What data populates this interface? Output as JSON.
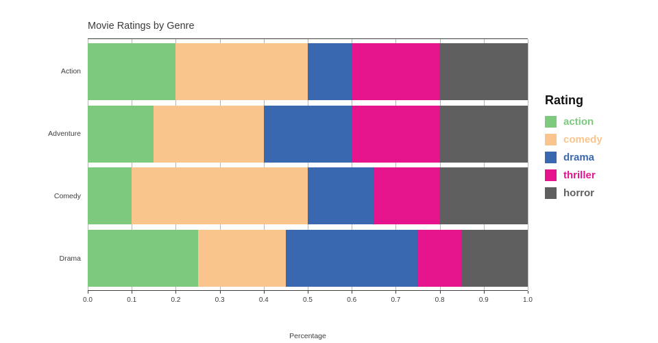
{
  "chart_data": {
    "type": "bar",
    "orientation": "horizontal",
    "stacked": true,
    "title": "Movie Ratings by Genre",
    "xlabel": "Percentage",
    "ylabel": "",
    "categories": [
      "Action",
      "Adventure",
      "Comedy",
      "Drama"
    ],
    "series": [
      {
        "name": "action",
        "color": "#7dc97e",
        "values": [
          0.2,
          0.15,
          0.1,
          0.25
        ]
      },
      {
        "name": "comedy",
        "color": "#fac48d",
        "values": [
          0.3,
          0.25,
          0.4,
          0.2
        ]
      },
      {
        "name": "drama",
        "color": "#3a68b0",
        "values": [
          0.1,
          0.2,
          0.15,
          0.3
        ]
      },
      {
        "name": "thriller",
        "color": "#e6148c",
        "values": [
          0.2,
          0.2,
          0.15,
          0.1
        ]
      },
      {
        "name": "horror",
        "color": "#5f5f5f",
        "values": [
          0.2,
          0.2,
          0.2,
          0.15
        ]
      }
    ],
    "xlim": [
      0.0,
      1.0
    ],
    "xticks": [
      "0.0",
      "0.1",
      "0.2",
      "0.3",
      "0.4",
      "0.5",
      "0.6",
      "0.7",
      "0.8",
      "0.9",
      "1.0"
    ],
    "grid": true,
    "legend": {
      "title": "Rating",
      "position": "right",
      "entries": [
        "action",
        "comedy",
        "drama",
        "thriller",
        "horror"
      ]
    }
  }
}
